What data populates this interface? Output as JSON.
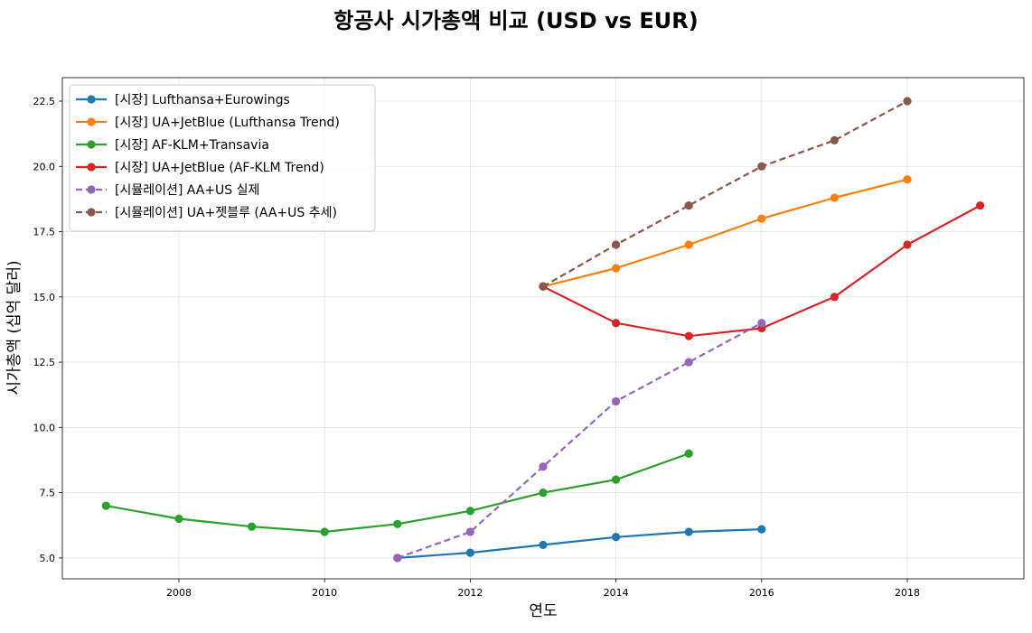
{
  "chart_data": {
    "type": "line",
    "title": "항공사 시가총액 비교 (USD vs EUR)",
    "xlabel": "연도",
    "ylabel": "시가총액 (십억 달러)",
    "xlim": [
      2006.4,
      2019.6
    ],
    "ylim": [
      4.2,
      23.4
    ],
    "xticks": [
      2008,
      2010,
      2012,
      2014,
      2016,
      2018
    ],
    "xtick_labels": [
      "2008",
      "2010",
      "2012",
      "2014",
      "2016",
      "2018"
    ],
    "yticks": [
      5.0,
      7.5,
      10.0,
      12.5,
      15.0,
      17.5,
      20.0,
      22.5
    ],
    "ytick_labels": [
      "5.0",
      "7.5",
      "10.0",
      "12.5",
      "15.0",
      "17.5",
      "20.0",
      "22.5"
    ],
    "grid": true,
    "legend_position": "top-left",
    "series": [
      {
        "name": "[시장] Lufthansa+Eurowings",
        "color": "#1f77b4",
        "dashed": false,
        "x": [
          2011,
          2012,
          2013,
          2014,
          2015,
          2016
        ],
        "y": [
          5.0,
          5.2,
          5.5,
          5.8,
          6.0,
          6.1
        ]
      },
      {
        "name": "[시장] UA+JetBlue (Lufthansa Trend)",
        "color": "#ff7f0e",
        "dashed": false,
        "x": [
          2013,
          2014,
          2015,
          2016,
          2017,
          2018
        ],
        "y": [
          15.4,
          16.1,
          17.0,
          18.0,
          18.8,
          19.5
        ]
      },
      {
        "name": "[시장] AF-KLM+Transavia",
        "color": "#2ca02c",
        "dashed": false,
        "x": [
          2007,
          2008,
          2009,
          2010,
          2011,
          2012,
          2013,
          2014,
          2015
        ],
        "y": [
          7.0,
          6.5,
          6.2,
          6.0,
          6.3,
          6.8,
          7.5,
          8.0,
          9.0
        ]
      },
      {
        "name": "[시장] UA+JetBlue (AF-KLM Trend)",
        "color": "#d62728",
        "dashed": false,
        "x": [
          2013,
          2014,
          2015,
          2016,
          2017,
          2018,
          2019
        ],
        "y": [
          15.4,
          14.0,
          13.5,
          13.8,
          15.0,
          17.0,
          18.5
        ]
      },
      {
        "name": "[시뮬레이션] AA+US 실제",
        "color": "#9467bd",
        "dashed": true,
        "x": [
          2011,
          2012,
          2013,
          2014,
          2015,
          2016
        ],
        "y": [
          5.0,
          6.0,
          8.5,
          11.0,
          12.5,
          14.0
        ]
      },
      {
        "name": "[시뮬레이션] UA+젯블루 (AA+US 추세)",
        "color": "#8c564b",
        "dashed": true,
        "x": [
          2013,
          2014,
          2015,
          2016,
          2017,
          2018
        ],
        "y": [
          15.4,
          17.0,
          18.5,
          20.0,
          21.0,
          22.5
        ]
      }
    ]
  }
}
